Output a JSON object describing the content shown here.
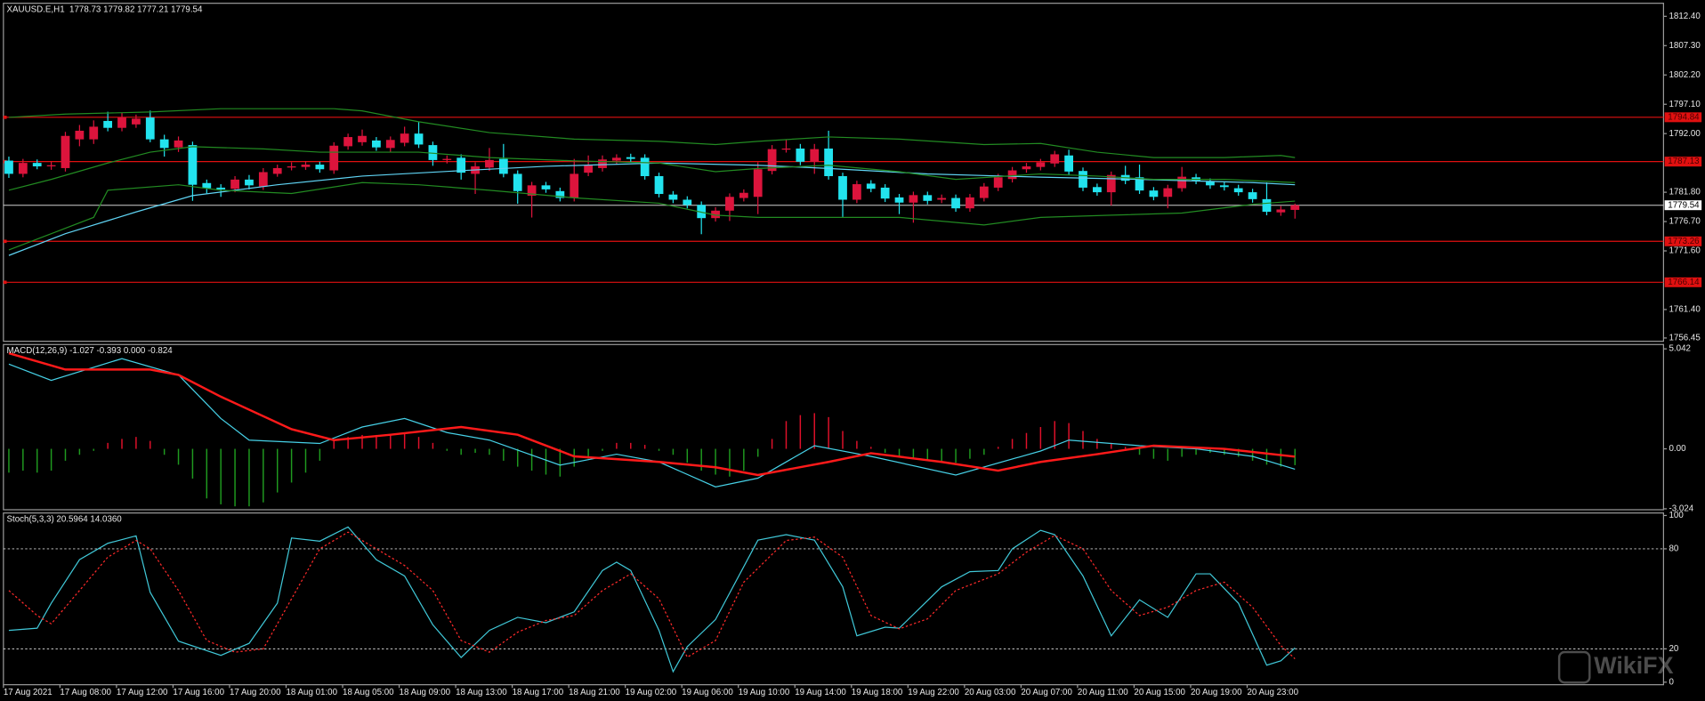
{
  "chart_data": [
    {
      "type": "candlestick",
      "title": "XAUUSD.E,H1  1778.73 1779.82 1777.21 1779.54",
      "categories": [
        "17 Aug 2021",
        null,
        null,
        null,
        "17 Aug 08:00",
        null,
        null,
        null,
        "17 Aug 12:00",
        null,
        null,
        null,
        "17 Aug 16:00",
        null,
        null,
        null,
        "17 Aug 20:00",
        null,
        null,
        null,
        "18 Aug 01:00",
        null,
        null,
        null,
        "18 Aug 05:00",
        null,
        null,
        null,
        "18 Aug 09:00",
        null,
        null,
        null,
        "18 Aug 13:00",
        null,
        null,
        null,
        "18 Aug 17:00",
        null,
        null,
        null,
        "18 Aug 21:00",
        null,
        null,
        null,
        "19 Aug 02:00",
        null,
        null,
        null,
        "19 Aug 06:00",
        null,
        null,
        null,
        "19 Aug 10:00",
        null,
        null,
        null,
        "19 Aug 14:00",
        null,
        null,
        null,
        "19 Aug 18:00",
        null,
        null,
        null,
        "19 Aug 22:00",
        null,
        null,
        null,
        "20 Aug 03:00",
        null,
        null,
        null,
        "20 Aug 07:00",
        null,
        null,
        null,
        "20 Aug 11:00",
        null,
        null,
        null,
        "20 Aug 15:00",
        null,
        null,
        null,
        "20 Aug 19:00",
        null,
        null,
        null,
        "20 Aug 23:00",
        null,
        null,
        null
      ],
      "open": [
        1787.3,
        1785.0,
        1786.9,
        1786.3,
        1786.0,
        1791.0,
        1791.0,
        1794.2,
        1793.0,
        1793.6,
        1794.8,
        1791.0,
        1789.6,
        1790.0,
        1783.4,
        1782.6,
        1782.4,
        1784.0,
        1782.8,
        1785.0,
        1786.1,
        1786.2,
        1786.6,
        1785.6,
        1789.8,
        1790.5,
        1790.8,
        1789.5,
        1790.4,
        1792.0,
        1790.0,
        1787.4,
        1787.8,
        1785.0,
        1786.1,
        1787.6,
        1785.0,
        1781.2,
        1783.0,
        1782.0,
        1780.8,
        1785.2,
        1786.0,
        1787.3,
        1787.9,
        1787.8,
        1784.6,
        1781.4,
        1780.5,
        1779.6,
        1777.3,
        1778.6,
        1780.8,
        1781.0,
        1785.5,
        1789.3,
        1789.4,
        1787.1,
        1789.4,
        1784.6,
        1780.5,
        1783.3,
        1782.6,
        1780.9,
        1780.0,
        1781.3,
        1780.5,
        1780.8,
        1779.0,
        1780.8,
        1782.6,
        1784.1,
        1785.8,
        1786.2,
        1786.8,
        1788.2,
        1785.5,
        1782.7,
        1781.8,
        1784.8,
        1784.4,
        1782.1,
        1781.0,
        1782.5,
        1784.4,
        1783.6,
        1783.0,
        1782.5,
        1781.8,
        1780.6,
        1778.3,
        1778.73
      ],
      "high": [
        1788.0,
        1787.6,
        1787.5,
        1787.1,
        1792.3,
        1793.5,
        1794.3,
        1795.8,
        1795.6,
        1795.3,
        1796.0,
        1791.8,
        1791.5,
        1790.6,
        1784.0,
        1783.2,
        1784.6,
        1784.8,
        1786.0,
        1786.6,
        1787.0,
        1787.2,
        1787.1,
        1790.5,
        1792.0,
        1792.7,
        1791.4,
        1791.5,
        1793.2,
        1794.0,
        1790.6,
        1788.2,
        1788.4,
        1787.0,
        1789.5,
        1790.2,
        1785.6,
        1783.6,
        1783.6,
        1782.6,
        1787.6,
        1788.2,
        1788.2,
        1788.4,
        1788.5,
        1788.4,
        1785.2,
        1782.0,
        1781.1,
        1780.2,
        1779.2,
        1781.6,
        1782.3,
        1787.0,
        1790.0,
        1791.0,
        1790.2,
        1790.2,
        1792.5,
        1785.2,
        1783.8,
        1783.9,
        1783.2,
        1781.5,
        1781.9,
        1781.9,
        1781.4,
        1781.4,
        1781.5,
        1783.4,
        1785.0,
        1786.2,
        1786.9,
        1787.6,
        1789.0,
        1789.2,
        1786.1,
        1783.3,
        1785.4,
        1786.4,
        1786.6,
        1782.7,
        1783.1,
        1786.2,
        1785.0,
        1784.2,
        1783.6,
        1783.1,
        1782.4,
        1783.5,
        1779.4,
        1779.82
      ],
      "low": [
        1784.3,
        1784.4,
        1785.8,
        1785.7,
        1785.4,
        1789.8,
        1790.2,
        1792.4,
        1792.4,
        1793.0,
        1790.5,
        1788.0,
        1788.8,
        1780.3,
        1781.6,
        1781.0,
        1781.8,
        1782.3,
        1782.2,
        1784.5,
        1785.6,
        1785.7,
        1785.2,
        1785.0,
        1789.2,
        1789.9,
        1789.0,
        1788.8,
        1789.8,
        1789.5,
        1786.4,
        1786.8,
        1784.0,
        1781.5,
        1785.5,
        1784.4,
        1779.8,
        1777.4,
        1781.7,
        1780.2,
        1780.2,
        1784.6,
        1785.4,
        1786.7,
        1787.0,
        1784.0,
        1780.9,
        1779.9,
        1779.0,
        1774.5,
        1776.7,
        1776.8,
        1780.2,
        1778.0,
        1784.9,
        1788.7,
        1786.5,
        1785.0,
        1784.0,
        1777.5,
        1779.9,
        1781.8,
        1780.1,
        1778.0,
        1776.5,
        1779.7,
        1779.9,
        1778.4,
        1778.4,
        1780.2,
        1782.0,
        1783.5,
        1785.2,
        1785.6,
        1786.2,
        1784.8,
        1782.0,
        1781.2,
        1779.5,
        1783.2,
        1781.5,
        1780.4,
        1779.0,
        1781.9,
        1783.2,
        1782.4,
        1782.1,
        1781.2,
        1780.0,
        1777.8,
        1777.7,
        1777.21
      ],
      "close": [
        1785.0,
        1786.9,
        1786.3,
        1786.5,
        1791.6,
        1792.5,
        1793.2,
        1793.0,
        1794.8,
        1794.6,
        1791.0,
        1789.5,
        1790.8,
        1783.1,
        1782.5,
        1782.3,
        1784.0,
        1783.0,
        1785.3,
        1786.0,
        1786.3,
        1786.6,
        1785.8,
        1789.9,
        1791.4,
        1791.6,
        1789.6,
        1790.9,
        1792.0,
        1790.1,
        1787.4,
        1787.6,
        1785.2,
        1786.3,
        1787.4,
        1785.0,
        1782.0,
        1783.0,
        1782.3,
        1780.8,
        1785.0,
        1786.5,
        1787.5,
        1787.8,
        1787.6,
        1784.6,
        1781.5,
        1780.5,
        1779.6,
        1777.3,
        1778.6,
        1781.0,
        1781.7,
        1785.8,
        1789.3,
        1789.4,
        1787.1,
        1789.3,
        1784.6,
        1780.5,
        1783.2,
        1782.4,
        1780.7,
        1780.0,
        1781.3,
        1780.3,
        1780.8,
        1779.0,
        1780.9,
        1782.8,
        1784.4,
        1785.6,
        1786.3,
        1787.0,
        1788.4,
        1785.4,
        1782.6,
        1781.8,
        1784.8,
        1783.8,
        1782.1,
        1781.0,
        1782.5,
        1784.5,
        1783.8,
        1783.0,
        1782.7,
        1781.8,
        1780.6,
        1778.4,
        1778.8,
        1779.54
      ],
      "up_color": "#dc143c",
      "down_color": "#22e3ee",
      "series": [
        {
          "color": "#5fd3f3",
          "x": [
            0,
            4,
            9,
            13,
            19,
            25,
            32,
            38,
            46,
            53,
            58,
            65,
            73,
            80,
            88,
            91
          ],
          "values": [
            1770.81,
            1774.59,
            1778.37,
            1781.21,
            1783.1,
            1784.61,
            1785.56,
            1786.31,
            1786.88,
            1786.5,
            1785.94,
            1784.99,
            1784.42,
            1784.04,
            1783.48,
            1783.1
          ]
        },
        {
          "color": "#228b22",
          "x": [
            0,
            4,
            10,
            15,
            23,
            25,
            29,
            34,
            40,
            46,
            50,
            53,
            58,
            63,
            69,
            73,
            77,
            81,
            86,
            90,
            91
          ],
          "values": [
            1794.82,
            1795.39,
            1795.76,
            1796.33,
            1796.33,
            1795.95,
            1794.06,
            1792.17,
            1791.04,
            1790.66,
            1790.09,
            1790.66,
            1791.42,
            1791.04,
            1790.09,
            1790.28,
            1788.77,
            1787.83,
            1787.83,
            1788.2,
            1787.83
          ]
        },
        {
          "color": "#228b22",
          "x": [
            0,
            3,
            7,
            10,
            13,
            18,
            22,
            29,
            34,
            40,
            46,
            50,
            53,
            58,
            63,
            67,
            73,
            77,
            81,
            86,
            91
          ],
          "values": [
            1782.15,
            1784.04,
            1786.88,
            1788.77,
            1789.72,
            1789.34,
            1788.77,
            1788.77,
            1787.83,
            1787.26,
            1786.88,
            1785.37,
            1785.93,
            1786.5,
            1785.37,
            1784.04,
            1784.99,
            1784.61,
            1784.04,
            1784.04,
            1783.48
          ]
        },
        {
          "color": "#228b22",
          "x": [
            0,
            3,
            6,
            7,
            12,
            15,
            20,
            25,
            29,
            34,
            40,
            46,
            50,
            53,
            58,
            63,
            69,
            73,
            78,
            83,
            88,
            91
          ],
          "values": [
            1771.76,
            1774.59,
            1777.43,
            1782.15,
            1783.1,
            1782.15,
            1781.59,
            1783.48,
            1783.1,
            1782.15,
            1780.83,
            1779.89,
            1777.81,
            1777.43,
            1777.43,
            1777.43,
            1776.11,
            1777.43,
            1777.81,
            1778.18,
            1779.7,
            1780.26
          ]
        }
      ],
      "hlines": [
        1794.84,
        1787.13,
        1773.26,
        1766.14
      ],
      "hline_color": "#e01010",
      "last_price": 1779.54,
      "ylim": [
        1755.88,
        1814.67
      ],
      "yticks": [
        {
          "value": 1812.4,
          "label": "1812.40"
        },
        {
          "value": 1807.3,
          "label": "1807.30"
        },
        {
          "value": 1802.2,
          "label": "1802.20"
        },
        {
          "value": 1797.1,
          "label": "1797.10"
        },
        {
          "value": 1792.0,
          "label": "1792.00"
        },
        {
          "value": 1781.8,
          "label": "1781.80"
        },
        {
          "value": 1776.7,
          "label": "1776.70"
        },
        {
          "value": 1771.6,
          "label": "1771.60"
        },
        {
          "value": 1761.4,
          "label": "1761.40"
        },
        1756.45
      ]
    },
    {
      "type": "bar",
      "title": "MACD(12,26,9) -1.027 -0.393 0.000 -0.824",
      "values": [
        -1.2,
        -1.1,
        -1.2,
        -1.1,
        -0.6,
        -0.3,
        -0.1,
        0.3,
        0.5,
        0.6,
        0.4,
        -0.3,
        -0.8,
        -1.5,
        -2.5,
        -2.8,
        -2.9,
        -2.9,
        -2.7,
        -2.2,
        -1.7,
        -1.2,
        -0.6,
        0.4,
        0.6,
        0.7,
        0.7,
        0.7,
        0.8,
        0.6,
        0.3,
        -0.1,
        -0.3,
        -0.2,
        -0.3,
        -0.6,
        -0.9,
        -1.1,
        -1.3,
        -1.4,
        -0.9,
        -0.5,
        -0.1,
        0.3,
        0.3,
        0.2,
        -0.1,
        -0.3,
        -0.7,
        -1.1,
        -1.3,
        -1.4,
        -1.1,
        -0.4,
        0.5,
        1.4,
        1.7,
        1.8,
        1.6,
        0.9,
        0.4,
        0.1,
        -0.2,
        -0.4,
        -0.5,
        -0.6,
        -0.7,
        -0.7,
        -0.5,
        -0.3,
        0.1,
        0.5,
        0.8,
        1.1,
        1.4,
        1.3,
        0.9,
        0.5,
        0.3,
        0.1,
        -0.3,
        -0.5,
        -0.6,
        -0.4,
        -0.3,
        -0.2,
        -0.3,
        -0.4,
        -0.6,
        -0.8,
        -0.9,
        -0.824
      ],
      "up_color": "#e0102a",
      "down_color": "#1f9a1f",
      "series": [
        {
          "color": "#46d0e6",
          "x": [
            0,
            3,
            8,
            12,
            15,
            17,
            22,
            25,
            28,
            31,
            34,
            39,
            43,
            46,
            50,
            53,
            57,
            61,
            67,
            73,
            75,
            80,
            84,
            88,
            91
          ],
          "values": [
            4.27,
            3.45,
            4.55,
            3.73,
            1.53,
            0.44,
            0.27,
            1.1,
            1.53,
            0.82,
            0.44,
            -0.82,
            -0.27,
            -0.66,
            -1.92,
            -1.48,
            0.16,
            -0.38,
            -1.32,
            -0.11,
            0.44,
            0.16,
            0,
            -0.38,
            -1.027
          ]
        },
        {
          "color": "#ff1a1a",
          "width": 2,
          "x": [
            0,
            4,
            10,
            12,
            15,
            20,
            23,
            27,
            32,
            36,
            40,
            46,
            50,
            53,
            58,
            61,
            66,
            70,
            73,
            77,
            81,
            86,
            91
          ],
          "values": [
            4.82,
            4.0,
            4.0,
            3.73,
            2.63,
            0.99,
            0.44,
            0.71,
            1.1,
            0.71,
            -0.38,
            -0.66,
            -0.93,
            -1.32,
            -0.66,
            -0.22,
            -0.66,
            -1.1,
            -0.66,
            -0.27,
            0.16,
            0,
            -0.393
          ]
        }
      ],
      "ylim": [
        -3.07,
        5.26
      ],
      "yticks": [
        5.042,
        {
          "value": 0,
          "label": "0.00"
        },
        -3.024
      ]
    },
    {
      "type": "line",
      "title": "Stoch(5,3,3) 20.5964 14.0360",
      "series": [
        {
          "color": "#40c8d8",
          "x": [
            0,
            2,
            3,
            5,
            7,
            9,
            10,
            12,
            15,
            17,
            19,
            20,
            22,
            24,
            26,
            28,
            30,
            32,
            34,
            36,
            38,
            40,
            42,
            43,
            44,
            46,
            47,
            48,
            50,
            53,
            55,
            57,
            59,
            60,
            62,
            63,
            66,
            68,
            70,
            71,
            73,
            74,
            76,
            78,
            80,
            82,
            84,
            85,
            87,
            89,
            90,
            91
          ],
          "values": [
            31.1,
            32.4,
            47.4,
            73.5,
            83.3,
            87.8,
            53.9,
            24.6,
            16.1,
            23.3,
            47.4,
            86.5,
            84.6,
            93.1,
            73.5,
            63.7,
            34.4,
            14.8,
            31.1,
            38.9,
            35.7,
            42.2,
            67.0,
            72,
            67.0,
            31.1,
            6.3,
            21.3,
            37.6,
            85.2,
            88.5,
            85.2,
            57.2,
            27.8,
            33.0,
            32.4,
            57.2,
            66.3,
            67.0,
            80.0,
            91.1,
            88.5,
            63.7,
            27.8,
            49.4,
            38.9,
            65.0,
            65.0,
            47.4,
            10.2,
            12.8,
            20.5964
          ]
        },
        {
          "color": "#ff2a2a",
          "dash": true,
          "x": [
            0,
            2,
            3,
            5,
            7,
            9,
            10,
            12,
            14,
            16,
            18,
            20,
            22,
            24,
            26,
            28,
            30,
            32,
            34,
            36,
            38,
            40,
            42,
            44,
            46,
            48,
            50,
            52,
            55,
            57,
            59,
            61,
            63,
            65,
            67,
            70,
            72,
            74,
            76,
            78,
            80,
            82,
            84,
            86,
            88,
            90,
            91
          ],
          "values": [
            55,
            40,
            35,
            55,
            75,
            85,
            80,
            55,
            25,
            18,
            20,
            50,
            80,
            90,
            80,
            70,
            55,
            25,
            18,
            30,
            37,
            40,
            55,
            65,
            50,
            15,
            25,
            60,
            85,
            87,
            75,
            40,
            32,
            38,
            55,
            65,
            78,
            88,
            80,
            55,
            40,
            45,
            55,
            60,
            45,
            22,
            14.036
          ]
        }
      ],
      "levels": [
        80,
        20
      ],
      "ylim": [
        -1.5,
        101.5
      ],
      "yticks": [
        100,
        80,
        20,
        0
      ]
    }
  ],
  "watermark": "WikiFX"
}
